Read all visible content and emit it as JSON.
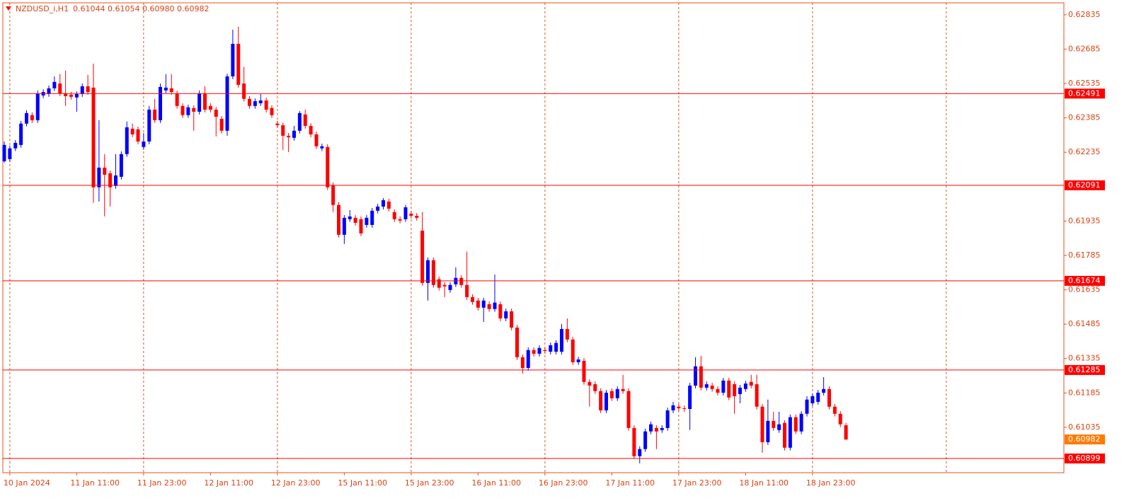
{
  "header": {
    "symbol": "NZDUSD_i,H1",
    "quote": "0.61044 0.61054 0.60980 0.60982"
  },
  "chart_data": {
    "type": "candlestick",
    "categories": [
      null,
      "10 Jan 2024",
      null,
      null,
      null,
      null,
      null,
      null,
      null,
      null,
      null,
      null,
      null,
      "11 Jan 11:00",
      null,
      null,
      null,
      null,
      null,
      null,
      null,
      null,
      null,
      null,
      null,
      "11 Jan 23:00",
      null,
      null,
      null,
      null,
      null,
      null,
      null,
      null,
      null,
      null,
      null,
      "12 Jan 11:00",
      null,
      null,
      null,
      null,
      null,
      null,
      null,
      null,
      null,
      null,
      null,
      "12 Jan 23:00",
      null,
      null,
      null,
      null,
      null,
      null,
      null,
      null,
      null,
      null,
      null,
      "15 Jan 11:00",
      null,
      null,
      null,
      null,
      null,
      null,
      null,
      null,
      null,
      null,
      null,
      "15 Jan 23:00",
      null,
      null,
      null,
      null,
      null,
      null,
      null,
      null,
      null,
      null,
      null,
      "16 Jan 11:00",
      null,
      null,
      null,
      null,
      null,
      null,
      null,
      null,
      null,
      null,
      null,
      "16 Jan 23:00",
      null,
      null,
      null,
      null,
      null,
      null,
      null,
      null,
      null,
      null,
      null,
      "17 Jan 11:00",
      null,
      null,
      null,
      null,
      null,
      null,
      null,
      null,
      null,
      null,
      null,
      "17 Jan 23:00",
      null,
      null,
      null,
      null,
      null,
      null,
      null,
      null,
      null,
      null,
      null,
      "18 Jan 11:00",
      null,
      null,
      null,
      null,
      null,
      null,
      null,
      null,
      null,
      null,
      null,
      "18 Jan 23:00",
      null,
      null,
      null,
      null,
      null,
      null
    ],
    "open": [
      0.62196,
      0.62205,
      0.62252,
      0.62267,
      0.6236,
      0.62397,
      0.62375,
      0.62483,
      0.62489,
      0.62514,
      0.62535,
      0.62492,
      0.62486,
      0.62474,
      0.62489,
      0.62523,
      0.62517,
      0.62082,
      0.62168,
      0.62143,
      0.62088,
      0.62128,
      0.62227,
      0.62338,
      0.62335,
      0.62258,
      0.62282,
      0.62421,
      0.62375,
      0.62505,
      0.62514,
      0.62492,
      0.62437,
      0.62397,
      0.62428,
      0.62412,
      0.62492,
      0.62437,
      0.62421,
      0.62381,
      0.62329,
      0.62566,
      0.62708,
      0.62535,
      0.62468,
      0.62437,
      0.62449,
      0.62461,
      0.62428,
      0.6236,
      0.62353,
      0.62307,
      0.62298,
      0.62329,
      0.624,
      0.6235,
      0.62313,
      0.62252,
      0.62258,
      0.62091,
      0.62005,
      0.61875,
      0.61943,
      0.61949,
      0.61943,
      0.61918,
      0.61918,
      0.6198,
      0.61998,
      0.6202,
      0.61974,
      0.61943,
      0.61943,
      0.61967,
      0.61958,
      0.61893,
      0.61665,
      0.61764,
      0.61681,
      0.61656,
      0.61634,
      0.61659,
      0.61687,
      0.61656,
      0.61603,
      0.61588,
      0.61557,
      0.61572,
      0.61551,
      0.61572,
      0.6151,
      0.61541,
      0.6147,
      0.61341,
      0.61294,
      0.61372,
      0.61356,
      0.61372,
      0.61365,
      0.61365,
      0.61365,
      0.61464,
      0.61418,
      0.61319,
      0.61325,
      0.61233,
      0.61223,
      0.61193,
      0.61109,
      0.61193,
      0.61162,
      0.61202,
      0.61193,
      0.61032,
      0.60909,
      0.6094,
      0.61017,
      0.61032,
      0.61023,
      0.61032,
      0.61109,
      0.61125,
      0.61118,
      0.61115,
      0.61217,
      0.61301,
      0.61208,
      0.61217,
      0.61202,
      0.61186,
      0.61239,
      0.61223,
      0.6118,
      0.61202,
      0.61233,
      0.61223,
      0.61125,
      0.6097,
      0.61063,
      0.61023,
      0.61054,
      0.60946,
      0.61079,
      0.61017,
      0.61094,
      0.6114,
      0.61146,
      0.61186,
      0.61202,
      0.61125,
      0.61094,
      0.61044
    ],
    "high": [
      0.62282,
      0.62264,
      0.62288,
      0.62372,
      0.62418,
      0.62409,
      0.62505,
      0.6251,
      0.62526,
      0.62566,
      0.62576,
      0.62591,
      0.62498,
      0.62501,
      0.62535,
      0.62573,
      0.62622,
      0.62375,
      0.62227,
      0.62155,
      0.62227,
      0.62239,
      0.62369,
      0.6236,
      0.62347,
      0.62319,
      0.62437,
      0.62468,
      0.62535,
      0.62576,
      0.62576,
      0.62504,
      0.62449,
      0.62443,
      0.6244,
      0.62505,
      0.62523,
      0.62449,
      0.62433,
      0.62393,
      0.62578,
      0.6277,
      0.62783,
      0.62607,
      0.6248,
      0.6247,
      0.62489,
      0.62473,
      0.6244,
      0.62372,
      0.62365,
      0.62319,
      0.6235,
      0.62415,
      0.62421,
      0.62362,
      0.62325,
      0.62273,
      0.6227,
      0.62103,
      0.62017,
      0.61961,
      0.61983,
      0.61961,
      0.61955,
      0.61961,
      0.61992,
      0.6201,
      0.62035,
      0.62032,
      0.61986,
      0.61955,
      0.62005,
      0.61979,
      0.6197,
      0.61974,
      0.61776,
      0.61776,
      0.61693,
      0.61668,
      0.61668,
      0.61733,
      0.61699,
      0.61801,
      0.61615,
      0.616,
      0.616,
      0.61584,
      0.61702,
      0.61584,
      0.61553,
      0.61553,
      0.61482,
      0.61353,
      0.61384,
      0.61384,
      0.61393,
      0.61384,
      0.61405,
      0.61415,
      0.61486,
      0.6151,
      0.6143,
      0.61343,
      0.61337,
      0.61245,
      0.61235,
      0.61205,
      0.61198,
      0.61205,
      0.61214,
      0.61264,
      0.61205,
      0.61044,
      0.60952,
      0.61029,
      0.6106,
      0.61044,
      0.61044,
      0.61121,
      0.61146,
      0.61137,
      0.6113,
      0.61229,
      0.61341,
      0.61347,
      0.61235,
      0.61229,
      0.61214,
      0.61251,
      0.61251,
      0.61235,
      0.6122,
      0.61238,
      0.61264,
      0.61264,
      0.61137,
      0.61156,
      0.61103,
      0.61103,
      0.61066,
      0.61091,
      0.61091,
      0.61106,
      0.61171,
      0.61183,
      0.61198,
      0.61254,
      0.61214,
      0.61137,
      0.61106,
      0.61054
    ],
    "low": [
      0.6219,
      0.62193,
      0.6224,
      0.62255,
      0.62348,
      0.62363,
      0.62363,
      0.62471,
      0.62477,
      0.62502,
      0.6248,
      0.62437,
      0.62465,
      0.62412,
      0.62477,
      0.62486,
      0.62014,
      0.6202,
      0.61955,
      0.61998,
      0.62076,
      0.62116,
      0.62215,
      0.62301,
      0.6227,
      0.62246,
      0.6227,
      0.62363,
      0.62363,
      0.62493,
      0.62486,
      0.62425,
      0.62385,
      0.62385,
      0.62329,
      0.624,
      0.62409,
      0.62409,
      0.62304,
      0.62317,
      0.62307,
      0.62554,
      0.62517,
      0.62456,
      0.62425,
      0.62425,
      0.62437,
      0.62409,
      0.62385,
      0.62341,
      0.62245,
      0.62236,
      0.62286,
      0.62317,
      0.62338,
      0.62301,
      0.62249,
      0.6224,
      0.6207,
      0.61974,
      0.61863,
      0.61835,
      0.61931,
      0.61915,
      0.61869,
      0.61906,
      0.61906,
      0.61968,
      0.61986,
      0.61977,
      0.61931,
      0.61925,
      0.61931,
      0.61946,
      0.61937,
      0.61653,
      0.61588,
      0.61644,
      0.61632,
      0.61603,
      0.61622,
      0.61647,
      0.61644,
      0.61591,
      0.6157,
      0.61545,
      0.61495,
      0.61539,
      0.61539,
      0.61498,
      0.61498,
      0.61458,
      0.61329,
      0.6127,
      0.61282,
      0.61344,
      0.61344,
      0.61356,
      0.61353,
      0.61353,
      0.61353,
      0.61406,
      0.61307,
      0.61307,
      0.61221,
      0.61125,
      0.61181,
      0.61097,
      0.61097,
      0.6115,
      0.6115,
      0.61181,
      0.6102,
      0.60897,
      0.60878,
      0.60928,
      0.61005,
      0.6094,
      0.61011,
      0.6102,
      0.61097,
      0.61106,
      0.61103,
      0.61023,
      0.61205,
      0.61196,
      0.61196,
      0.6119,
      0.61174,
      0.61174,
      0.61153,
      0.61094,
      0.6114,
      0.6119,
      0.61205,
      0.61113,
      0.60924,
      0.60958,
      0.6102,
      0.61011,
      0.60934,
      0.60934,
      0.61005,
      0.61005,
      0.61082,
      0.61128,
      0.61134,
      0.61174,
      0.61113,
      0.61082,
      0.61036,
      0.6098
    ],
    "close": [
      0.62267,
      0.62252,
      0.62276,
      0.6236,
      0.62406,
      0.62375,
      0.62492,
      0.62498,
      0.62514,
      0.62542,
      0.62492,
      0.6248,
      0.62477,
      0.62489,
      0.62523,
      0.62498,
      0.62082,
      0.62168,
      0.62137,
      0.62082,
      0.62134,
      0.62227,
      0.62344,
      0.62313,
      0.62282,
      0.62282,
      0.62421,
      0.62375,
      0.6252,
      0.62517,
      0.62498,
      0.62437,
      0.62397,
      0.62431,
      0.62412,
      0.62492,
      0.62421,
      0.62421,
      0.6239,
      0.62329,
      0.62566,
      0.62708,
      0.62529,
      0.62468,
      0.62437,
      0.62458,
      0.62461,
      0.62421,
      0.62397,
      0.62353,
      0.62307,
      0.62301,
      0.62329,
      0.62406,
      0.6235,
      0.62313,
      0.62261,
      0.62261,
      0.62082,
      0.62005,
      0.61875,
      0.61949,
      0.61955,
      0.61927,
      0.61881,
      0.61949,
      0.6198,
      0.61998,
      0.62026,
      0.61989,
      0.61943,
      0.61937,
      0.61995,
      0.61958,
      0.61949,
      0.61665,
      0.61764,
      0.61656,
      0.61644,
      0.6165,
      0.61656,
      0.61687,
      0.61656,
      0.61603,
      0.61582,
      0.61557,
      0.61588,
      0.61551,
      0.61579,
      0.6151,
      0.61541,
      0.6147,
      0.61341,
      0.61294,
      0.61372,
      0.61356,
      0.61381,
      0.61368,
      0.61393,
      0.61403,
      0.61464,
      0.61418,
      0.61319,
      0.61331,
      0.61233,
      0.61217,
      0.61193,
      0.61109,
      0.61186,
      0.61162,
      0.61202,
      0.61193,
      0.61032,
      0.60909,
      0.6094,
      0.61017,
      0.61048,
      0.61017,
      0.61032,
      0.61109,
      0.61131,
      0.61118,
      0.61115,
      0.61217,
      0.61301,
      0.61208,
      0.61223,
      0.61202,
      0.61186,
      0.61239,
      0.61165,
      0.61171,
      0.61208,
      0.61226,
      0.61217,
      0.61125,
      0.6097,
      0.61063,
      0.61032,
      0.61048,
      0.60946,
      0.61079,
      0.61017,
      0.61094,
      0.61156,
      0.61171,
      0.61186,
      0.61202,
      0.61125,
      0.61094,
      0.61048,
      0.60982
    ],
    "up_color": "#0000ff",
    "down_color": "#ff0000",
    "ylim": [
      0.60837,
      0.62887
    ],
    "yticks": [
      0.62835,
      0.62685,
      0.62535,
      0.62385,
      0.62235,
      0.61935,
      0.61785,
      0.61635,
      0.61485,
      0.61335,
      0.61185,
      0.61035
    ],
    "levels": [
      0.62491,
      0.62091,
      0.61674,
      0.61285,
      0.60899
    ],
    "level_color": "#ff0000",
    "last_price": 0.60982,
    "last_price_color": "#ff7a00",
    "grid": true
  }
}
